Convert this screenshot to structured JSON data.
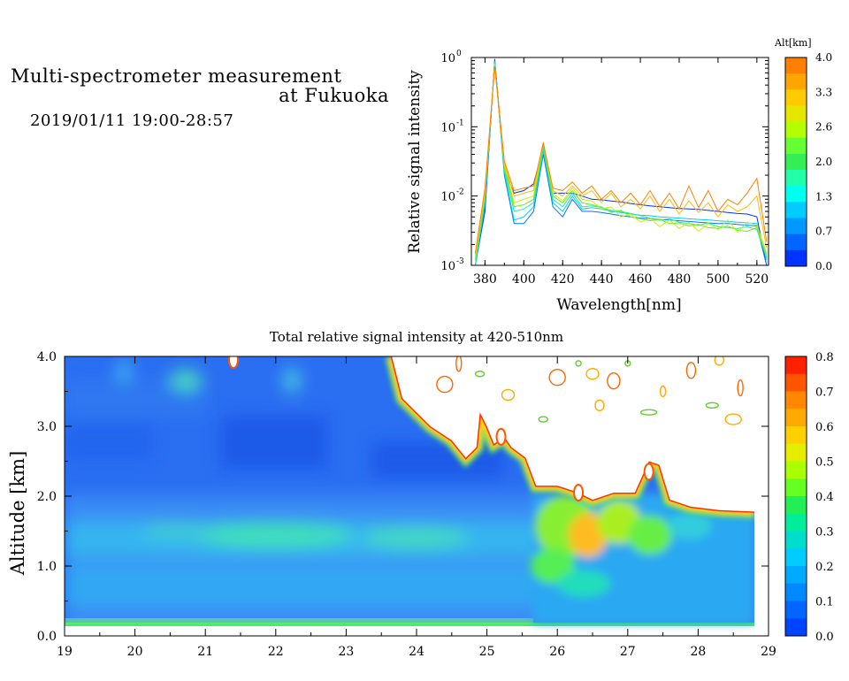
{
  "header": {
    "title_line1": "Multi-spectrometer measurement",
    "title_line2": "at Fukuoka",
    "datetime": "2019/01/11 19:00-28:57"
  },
  "chart_data": [
    {
      "type": "line",
      "xlabel": "Wavelength[nm]",
      "ylabel": "Relative signal intensity",
      "xlim": [
        373,
        526
      ],
      "ylim": [
        0.001,
        1
      ],
      "yscale": "log",
      "x_ticks": [
        380,
        400,
        420,
        440,
        460,
        480,
        500,
        520
      ],
      "y_ticks": [
        {
          "value": 1,
          "mantissa": "10",
          "exp": "0"
        },
        {
          "value": 0.1,
          "mantissa": "10",
          "exp": "-1"
        },
        {
          "value": 0.01,
          "mantissa": "10",
          "exp": "-2"
        },
        {
          "value": 0.001,
          "mantissa": "10",
          "exp": "-3"
        }
      ],
      "colorbar": {
        "label": "Alt[km]",
        "ticks": [
          "4.0",
          "3.3",
          "2.6",
          "2.0",
          "1.3",
          "0.7",
          "0.0"
        ],
        "colors": [
          "#ff7f00",
          "#ffa500",
          "#ffcc00",
          "#e6e600",
          "#b3ff00",
          "#66ff33",
          "#33ee55",
          "#22ffaa",
          "#00ffee",
          "#00ccff",
          "#0099ff",
          "#0066ff",
          "#0033ff"
        ]
      },
      "x": [
        375,
        380,
        385,
        390,
        395,
        400,
        405,
        410,
        415,
        420,
        425,
        430,
        435,
        440,
        445,
        450,
        455,
        460,
        465,
        470,
        475,
        480,
        485,
        490,
        495,
        500,
        505,
        510,
        515,
        520,
        525
      ],
      "series": [
        {
          "color": "#0033ff",
          "values": [
            0.001,
            0.006,
            0.95,
            0.025,
            0.011,
            0.012,
            0.015,
            0.05,
            0.011,
            0.011,
            0.011,
            0.01,
            0.009,
            0.0088,
            0.0085,
            0.0082,
            0.0078,
            0.0075,
            0.0072,
            0.007,
            0.0068,
            0.0066,
            0.0065,
            0.0064,
            0.0062,
            0.006,
            0.0058,
            0.0056,
            0.0055,
            0.005,
            0.001
          ]
        },
        {
          "color": "#0077ff",
          "values": [
            0.001,
            0.007,
            0.9,
            0.02,
            0.004,
            0.004,
            0.006,
            0.04,
            0.007,
            0.005,
            0.009,
            0.006,
            0.006,
            0.0058,
            0.0055,
            0.0052,
            0.005,
            0.0048,
            0.0047,
            0.0046,
            0.0045,
            0.0044,
            0.0043,
            0.0042,
            0.0041,
            0.004,
            0.004,
            0.0039,
            0.0038,
            0.0037,
            0.001
          ]
        },
        {
          "color": "#00ccff",
          "values": [
            0.001,
            0.008,
            0.88,
            0.022,
            0.0045,
            0.005,
            0.007,
            0.045,
            0.008,
            0.006,
            0.01,
            0.0065,
            0.0068,
            0.0065,
            0.006,
            0.0058,
            0.0055,
            0.0053,
            0.0052,
            0.005,
            0.0049,
            0.0048,
            0.0047,
            0.0046,
            0.0045,
            0.0044,
            0.0043,
            0.0042,
            0.0041,
            0.004,
            0.0012
          ]
        },
        {
          "color": "#22ee99",
          "values": [
            0.001,
            0.009,
            0.85,
            0.024,
            0.006,
            0.0065,
            0.008,
            0.05,
            0.009,
            0.007,
            0.011,
            0.007,
            0.0072,
            0.0068,
            0.0062,
            0.006,
            0.0056,
            0.0052,
            0.0048,
            0.0045,
            0.0047,
            0.0042,
            0.004,
            0.0038,
            0.0041,
            0.0036,
            0.0035,
            0.0034,
            0.0036,
            0.0033,
            0.0013
          ]
        },
        {
          "color": "#66ee22",
          "values": [
            0.0012,
            0.01,
            0.82,
            0.026,
            0.007,
            0.0075,
            0.009,
            0.055,
            0.01,
            0.008,
            0.012,
            0.008,
            0.0075,
            0.007,
            0.0058,
            0.0062,
            0.005,
            0.0047,
            0.0044,
            0.0046,
            0.004,
            0.0041,
            0.0037,
            0.0039,
            0.0035,
            0.0034,
            0.0037,
            0.0032,
            0.0031,
            0.0035,
            0.0014
          ]
        },
        {
          "color": "#ccee00",
          "values": [
            0.0013,
            0.011,
            0.8,
            0.028,
            0.008,
            0.009,
            0.01,
            0.06,
            0.011,
            0.0085,
            0.013,
            0.009,
            0.0085,
            0.0065,
            0.007,
            0.005,
            0.0055,
            0.0042,
            0.0048,
            0.0036,
            0.0045,
            0.0034,
            0.0042,
            0.0031,
            0.004,
            0.0033,
            0.0045,
            0.003,
            0.0042,
            0.0038,
            0.0015
          ]
        },
        {
          "color": "#ffbb00",
          "values": [
            0.0014,
            0.012,
            0.78,
            0.03,
            0.01,
            0.011,
            0.012,
            0.06,
            0.012,
            0.01,
            0.014,
            0.01,
            0.012,
            0.008,
            0.011,
            0.007,
            0.009,
            0.0065,
            0.01,
            0.006,
            0.009,
            0.0055,
            0.0085,
            0.0058,
            0.008,
            0.005,
            0.0075,
            0.006,
            0.007,
            0.01,
            0.0018
          ]
        },
        {
          "color": "#ff8000",
          "values": [
            0.0015,
            0.013,
            0.75,
            0.032,
            0.012,
            0.013,
            0.014,
            0.058,
            0.013,
            0.012,
            0.016,
            0.011,
            0.014,
            0.009,
            0.012,
            0.008,
            0.011,
            0.0075,
            0.012,
            0.007,
            0.011,
            0.0065,
            0.014,
            0.0068,
            0.012,
            0.006,
            0.009,
            0.0075,
            0.011,
            0.018,
            0.0022
          ]
        }
      ]
    },
    {
      "type": "heatmap",
      "title": "Total relative signal intensity at 420-510nm",
      "ylabel": "Altitude [km]",
      "xlim": [
        19,
        29
      ],
      "ylim": [
        0,
        4
      ],
      "x_ticks": [
        "19",
        "20",
        "21",
        "22",
        "23",
        "24",
        "25",
        "26",
        "27",
        "28",
        "29"
      ],
      "y_ticks": [
        "0.0",
        "1.0",
        "2.0",
        "3.0",
        "4.0"
      ],
      "colorbar": {
        "ticks": [
          "0.8",
          "0.7",
          "0.6",
          "0.5",
          "0.4",
          "0.3",
          "0.2",
          "0.1",
          "0.0"
        ],
        "colors": [
          "#ff2000",
          "#ff5500",
          "#ff8800",
          "#ffaa00",
          "#ffd000",
          "#e6ee00",
          "#aaff00",
          "#66ff22",
          "#22ee55",
          "#00ee99",
          "#00ddcc",
          "#00ccff",
          "#00aaff",
          "#0088ff",
          "#0066ff",
          "#0044ff"
        ]
      },
      "data_end_x": 28.8,
      "cloud_top": [
        [
          23.65,
          4.0
        ],
        [
          23.8,
          3.4
        ],
        [
          24.0,
          3.2
        ],
        [
          24.2,
          3.0
        ],
        [
          24.5,
          2.8
        ],
        [
          24.7,
          2.55
        ],
        [
          24.85,
          2.7
        ],
        [
          24.9,
          3.2
        ],
        [
          25.0,
          3.0
        ],
        [
          25.1,
          2.75
        ],
        [
          25.25,
          2.85
        ],
        [
          25.35,
          2.7
        ],
        [
          25.55,
          2.55
        ],
        [
          25.7,
          2.15
        ],
        [
          26.0,
          2.15
        ],
        [
          26.3,
          2.05
        ],
        [
          26.5,
          1.95
        ],
        [
          26.8,
          2.05
        ],
        [
          27.1,
          2.05
        ],
        [
          27.3,
          2.5
        ],
        [
          27.45,
          2.45
        ],
        [
          27.6,
          1.95
        ],
        [
          27.9,
          1.85
        ],
        [
          28.3,
          1.8
        ],
        [
          28.8,
          1.78
        ]
      ],
      "low_clouds": [
        [
          21.4,
          3.95
        ],
        [
          25.2,
          2.85
        ],
        [
          26.3,
          2.05
        ],
        [
          27.3,
          2.35
        ]
      ]
    }
  ]
}
